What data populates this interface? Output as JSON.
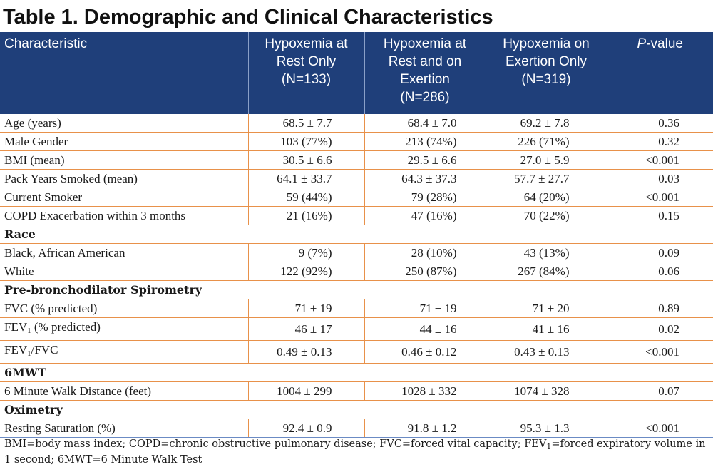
{
  "title": "Table 1. Demographic and Clinical Characteristics",
  "headers": [
    {
      "lines": [
        "Characteristic"
      ]
    },
    {
      "lines": [
        "Hypoxemia at",
        "Rest Only",
        "(N=133)"
      ]
    },
    {
      "lines": [
        "Hypoxemia at",
        "Rest and on",
        "Exertion",
        "(N=286)"
      ]
    },
    {
      "lines": [
        "Hypoxemia on",
        "Exertion Only",
        "(N=319)"
      ]
    },
    {
      "lines": [
        "P",
        "-value"
      ]
    }
  ],
  "rows": [
    {
      "type": "data",
      "label": "Age (years)",
      "values": [
        "68.5 ± 7.7",
        "68.4 ± 7.0",
        "69.2 ± 7.8",
        "0.36"
      ]
    },
    {
      "type": "data",
      "label": "Male Gender",
      "values": [
        "103 (77%)",
        "213 (74%)",
        "226 (71%)",
        "0.32"
      ]
    },
    {
      "type": "data",
      "label": "BMI (mean)",
      "values": [
        "30.5 ± 6.6",
        "29.5 ± 6.6",
        "27.0 ± 5.9",
        "<0.001"
      ]
    },
    {
      "type": "data",
      "label": "Pack Years Smoked (mean)",
      "values": [
        "64.1 ± 33.7",
        "64.3 ± 37.3",
        "57.7 ± 27.7",
        "0.03"
      ]
    },
    {
      "type": "data",
      "label": "Current Smoker",
      "values": [
        "59 (44%)",
        "79 (28%)",
        "64 (20%)",
        "<0.001"
      ]
    },
    {
      "type": "data",
      "label": "COPD Exacerbation within 3 months",
      "values": [
        "21 (16%)",
        "47 (16%)",
        "70 (22%)",
        "0.15"
      ]
    },
    {
      "type": "section",
      "label": "Race"
    },
    {
      "type": "data",
      "label": "Black, African American",
      "values": [
        "9 (7%)",
        "28 (10%)",
        "43 (13%)",
        "0.09"
      ]
    },
    {
      "type": "data",
      "label": "White",
      "values": [
        "122 (92%)",
        "250 (87%)",
        "267 (84%)",
        "0.06"
      ]
    },
    {
      "type": "section",
      "label": "Pre-bronchodilator Spirometry"
    },
    {
      "type": "data",
      "label": "FVC (% predicted)",
      "values": [
        "71 ± 19",
        "71 ± 19",
        "71 ± 20",
        "0.89"
      ]
    },
    {
      "type": "data",
      "label": "FEV",
      "label_sub": "1",
      "label_after": " (% predicted)",
      "values": [
        "46 ± 17",
        "44 ± 16",
        "41 ± 16",
        "0.02"
      ]
    },
    {
      "type": "data",
      "label": "FEV",
      "label_sub": "1",
      "label_after": "/FVC",
      "values": [
        "0.49 ± 0.13",
        "0.46 ± 0.12",
        "0.43 ± 0.13",
        "<0.001"
      ]
    },
    {
      "type": "section",
      "label": "6MWT"
    },
    {
      "type": "data",
      "label": "6 Minute Walk Distance (feet)",
      "values": [
        "1004 ± 299",
        "1028 ± 332",
        "1074 ± 328",
        "0.07"
      ]
    },
    {
      "type": "section",
      "label": "Oximetry"
    },
    {
      "type": "data",
      "label": "Resting Saturation (%)",
      "values": [
        "92.4 ± 0.9",
        "91.8 ± 1.2",
        "95.3 ± 1.3",
        "<0.001"
      ]
    }
  ],
  "footnote": {
    "before": "BMI=body mass index; COPD=chronic obstructive pulmonary disease; FVC=forced vital capacity; FEV",
    "sub": "1",
    "after": "=forced expiratory volume in 1 second; 6MWT=6 Minute Walk Test"
  }
}
